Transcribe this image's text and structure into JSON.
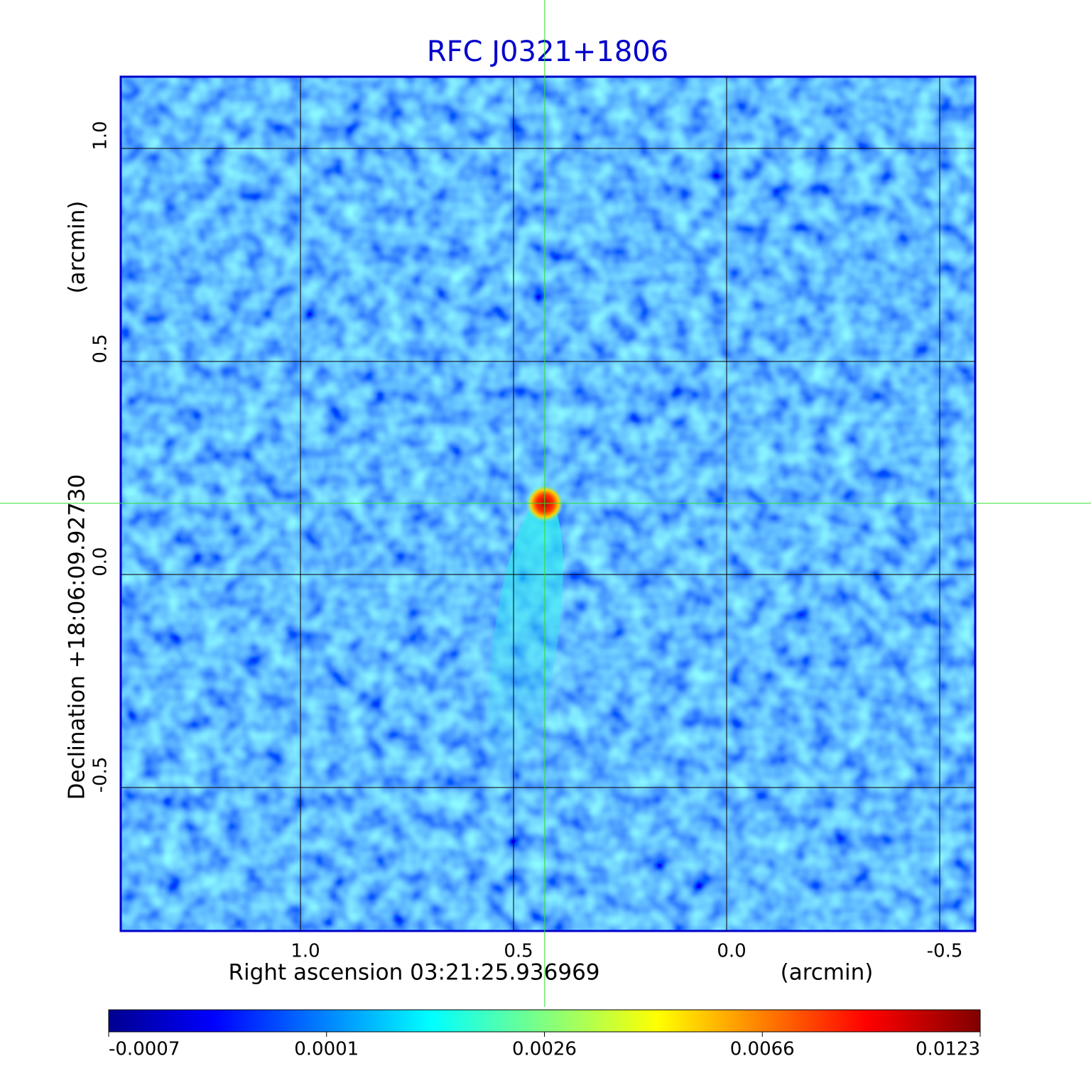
{
  "chart_data": {
    "type": "image",
    "title": "RFC J0321+1806",
    "x_label": "Right ascension  03:21:25.936969",
    "x_unit": "(arcmin)",
    "y_label": "Declination  +18:06:09.92730",
    "y_unit": "(arcmin)",
    "xlim": [
      1.4217,
      -0.5833
    ],
    "ylim": [
      -0.8367,
      1.1683
    ],
    "xticks": [
      {
        "value": 1.0,
        "label": "1.0"
      },
      {
        "value": 0.5,
        "label": "0.5"
      },
      {
        "value": 0.0,
        "label": "0.0"
      },
      {
        "value": -0.5,
        "label": "-0.5"
      }
    ],
    "yticks": [
      {
        "value": 1.0,
        "label": "1.0"
      },
      {
        "value": 0.5,
        "label": "0.5"
      },
      {
        "value": 0.0,
        "label": "0.0"
      },
      {
        "value": -0.5,
        "label": "-0.5"
      }
    ],
    "grid": true,
    "crosshair": [
      0.427,
      0.167
    ],
    "colormap": "jet",
    "colorbar_ticks": [
      -0.0007,
      0.0001,
      0.0026,
      0.0066,
      0.0123
    ]
  }
}
